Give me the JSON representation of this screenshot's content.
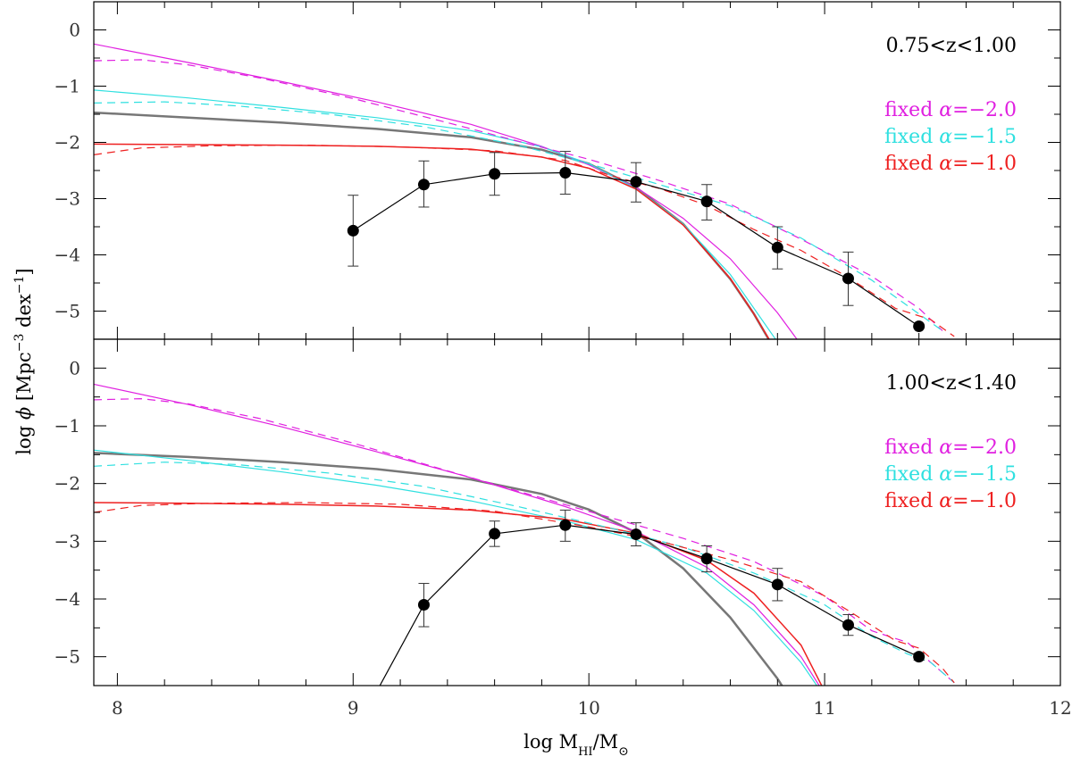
{
  "chart_data": {
    "type": "line",
    "xlabel": "log M",
    "xlabel_sub": "HI",
    "xlabel_tail": "/M",
    "xlabel_sun": "⊙",
    "ylabel_pre": "log ",
    "ylabel_phi": "ϕ",
    "ylabel_mid": " [Mpc",
    "ylabel_exp1": "−3",
    "ylabel_dex": " dex",
    "ylabel_exp2": "−1",
    "ylabel_end": "]",
    "xlim": [
      7.9,
      12.0
    ],
    "ylim": [
      -5.5,
      0.5
    ],
    "xticks": [
      "8",
      "9",
      "10",
      "11",
      "12"
    ],
    "yticks": [
      "0",
      "−1",
      "−2",
      "−3",
      "−4",
      "−5"
    ],
    "colors": {
      "gray": "#777777",
      "magenta": "#e020e0",
      "cyan": "#30e0e0",
      "red": "#ee2020",
      "black": "#000000"
    },
    "panels": [
      {
        "label": "0.75<z<1.00",
        "legend": [
          {
            "prefix": "fixed ",
            "alpha": "α",
            "value": "=−2.0",
            "color": "magenta"
          },
          {
            "prefix": "fixed ",
            "alpha": "α",
            "value": "=−1.5",
            "color": "cyan"
          },
          {
            "prefix": "fixed ",
            "alpha": "α",
            "value": "=−1.0",
            "color": "red"
          }
        ],
        "points": {
          "x": [
            9.0,
            9.3,
            9.6,
            9.9,
            10.2,
            10.5,
            10.8,
            11.1,
            11.4
          ],
          "y": [
            -3.57,
            -2.75,
            -2.56,
            -2.54,
            -2.7,
            -3.05,
            -3.87,
            -4.42,
            -5.27
          ],
          "err_lo": [
            0.63,
            0.4,
            0.38,
            0.38,
            0.36,
            0.33,
            0.38,
            0.48,
            0.0
          ],
          "err_hi": [
            0.63,
            0.42,
            0.38,
            0.38,
            0.34,
            0.3,
            0.37,
            0.47,
            0.0
          ]
        },
        "series": [
          {
            "name": "gray",
            "style": "solid",
            "width": 2.5,
            "x": [
              7.9,
              8.3,
              8.7,
              9.1,
              9.5,
              9.8,
              10.0,
              10.2,
              10.4,
              10.6,
              10.7,
              10.8
            ],
            "y": [
              -1.47,
              -1.56,
              -1.65,
              -1.76,
              -1.91,
              -2.13,
              -2.38,
              -2.8,
              -3.45,
              -4.43,
              -5.05,
              -5.77
            ]
          },
          {
            "name": "magenta",
            "style": "solid",
            "width": 1.2,
            "x": [
              7.9,
              8.3,
              8.7,
              9.1,
              9.5,
              9.8,
              10.0,
              10.2,
              10.4,
              10.6,
              10.8,
              10.9
            ],
            "y": [
              -0.25,
              -0.58,
              -0.92,
              -1.28,
              -1.68,
              -2.07,
              -2.4,
              -2.8,
              -3.35,
              -4.07,
              -5.03,
              -5.6
            ]
          },
          {
            "name": "cyan",
            "style": "solid",
            "width": 1.2,
            "x": [
              7.9,
              8.3,
              8.7,
              9.1,
              9.5,
              9.8,
              10.0,
              10.2,
              10.4,
              10.6,
              10.8,
              10.85
            ],
            "y": [
              -1.07,
              -1.21,
              -1.38,
              -1.56,
              -1.79,
              -2.08,
              -2.38,
              -2.82,
              -3.45,
              -4.35,
              -5.55,
              -5.9
            ]
          },
          {
            "name": "red",
            "style": "solid",
            "width": 1.5,
            "x": [
              7.9,
              8.3,
              8.7,
              9.1,
              9.5,
              9.8,
              10.0,
              10.2,
              10.4,
              10.6,
              10.7,
              10.8
            ],
            "y": [
              -2.03,
              -2.04,
              -2.05,
              -2.07,
              -2.12,
              -2.26,
              -2.46,
              -2.83,
              -3.47,
              -4.42,
              -5.05,
              -5.75
            ]
          },
          {
            "name": "magenta",
            "style": "dash",
            "width": 1.2,
            "x": [
              7.9,
              8.1,
              8.3,
              8.6,
              9.0,
              9.4,
              9.7,
              10.0,
              10.3,
              10.6,
              10.9,
              11.2,
              11.4,
              11.5
            ],
            "y": [
              -0.55,
              -0.53,
              -0.62,
              -0.85,
              -1.22,
              -1.65,
              -1.98,
              -2.3,
              -2.68,
              -3.1,
              -3.72,
              -4.38,
              -4.95,
              -5.35
            ]
          },
          {
            "name": "cyan",
            "style": "dash",
            "width": 1.2,
            "x": [
              7.9,
              8.2,
              8.5,
              8.9,
              9.3,
              9.7,
              10.0,
              10.3,
              10.6,
              10.9,
              11.2,
              11.4,
              11.5
            ],
            "y": [
              -1.3,
              -1.28,
              -1.35,
              -1.5,
              -1.72,
              -2.05,
              -2.38,
              -2.75,
              -3.13,
              -3.7,
              -4.45,
              -5.05,
              -5.35
            ]
          },
          {
            "name": "red",
            "style": "dash",
            "width": 1.2,
            "x": [
              7.9,
              8.1,
              8.4,
              8.8,
              9.2,
              9.6,
              9.9,
              10.1,
              10.3,
              10.5,
              10.7,
              10.9,
              11.1,
              11.3,
              11.45,
              11.55
            ],
            "y": [
              -2.22,
              -2.1,
              -2.06,
              -2.05,
              -2.08,
              -2.15,
              -2.32,
              -2.6,
              -2.82,
              -3.12,
              -3.55,
              -3.92,
              -4.4,
              -4.95,
              -5.15,
              -5.45
            ]
          }
        ]
      },
      {
        "label": "1.00<z<1.40",
        "legend": [
          {
            "prefix": "fixed ",
            "alpha": "α",
            "value": "=−2.0",
            "color": "magenta"
          },
          {
            "prefix": "fixed ",
            "alpha": "α",
            "value": "=−1.5",
            "color": "cyan"
          },
          {
            "prefix": "fixed ",
            "alpha": "α",
            "value": "=−1.0",
            "color": "red"
          }
        ],
        "points": {
          "x": [
            9.3,
            9.6,
            9.9,
            10.2,
            10.5,
            10.8,
            11.1,
            11.4
          ],
          "y": [
            -4.1,
            -2.87,
            -2.72,
            -2.88,
            -3.3,
            -3.75,
            -4.45,
            -5.0
          ],
          "err_lo": [
            0.38,
            0.22,
            0.28,
            0.2,
            0.23,
            0.28,
            0.18,
            0.06
          ],
          "err_hi": [
            0.37,
            0.22,
            0.26,
            0.2,
            0.22,
            0.28,
            0.18,
            0.06
          ]
        },
        "black_line": {
          "x": [
            9.1,
            9.3,
            9.6,
            9.9,
            10.2,
            10.5,
            10.8,
            11.1,
            11.4
          ],
          "y": [
            -5.6,
            -4.1,
            -2.87,
            -2.72,
            -2.88,
            -3.3,
            -3.75,
            -4.45,
            -5.0
          ]
        },
        "series": [
          {
            "name": "gray",
            "style": "solid",
            "width": 2.5,
            "x": [
              7.9,
              8.3,
              8.7,
              9.1,
              9.5,
              9.8,
              10.0,
              10.2,
              10.4,
              10.6,
              10.8,
              10.85
            ],
            "y": [
              -1.47,
              -1.54,
              -1.63,
              -1.75,
              -1.93,
              -2.18,
              -2.45,
              -2.85,
              -3.47,
              -4.32,
              -5.38,
              -5.7
            ]
          },
          {
            "name": "magenta",
            "style": "solid",
            "width": 1.2,
            "x": [
              7.9,
              8.3,
              8.7,
              9.1,
              9.5,
              9.9,
              10.2,
              10.5,
              10.7,
              10.9,
              11.0
            ],
            "y": [
              -0.28,
              -0.63,
              -1.02,
              -1.45,
              -1.9,
              -2.4,
              -2.83,
              -3.45,
              -4.1,
              -5.0,
              -5.65
            ]
          },
          {
            "name": "cyan",
            "style": "solid",
            "width": 1.2,
            "x": [
              7.9,
              8.3,
              8.7,
              9.1,
              9.5,
              9.9,
              10.2,
              10.5,
              10.7,
              10.9,
              11.0
            ],
            "y": [
              -1.42,
              -1.6,
              -1.8,
              -2.03,
              -2.3,
              -2.65,
              -2.97,
              -3.55,
              -4.2,
              -5.1,
              -5.7
            ]
          },
          {
            "name": "red",
            "style": "solid",
            "width": 1.5,
            "x": [
              7.9,
              8.3,
              8.7,
              9.1,
              9.5,
              9.9,
              10.2,
              10.5,
              10.7,
              10.9,
              11.0
            ],
            "y": [
              -2.33,
              -2.34,
              -2.36,
              -2.39,
              -2.46,
              -2.62,
              -2.86,
              -3.33,
              -3.9,
              -4.8,
              -5.6
            ]
          },
          {
            "name": "magenta",
            "style": "dash",
            "width": 1.2,
            "x": [
              7.9,
              8.1,
              8.3,
              8.6,
              9.0,
              9.4,
              9.8,
              10.1,
              10.4,
              10.7,
              11.0,
              11.2,
              11.35,
              11.45,
              11.55
            ],
            "y": [
              -0.55,
              -0.53,
              -0.62,
              -0.87,
              -1.3,
              -1.78,
              -2.25,
              -2.6,
              -2.95,
              -3.35,
              -3.95,
              -4.55,
              -4.75,
              -5.1,
              -5.45
            ]
          },
          {
            "name": "cyan",
            "style": "dash",
            "width": 1.2,
            "x": [
              7.9,
              8.2,
              8.5,
              8.9,
              9.3,
              9.7,
              10.1,
              10.4,
              10.7,
              11.0,
              11.2,
              11.35,
              11.45,
              11.55
            ],
            "y": [
              -1.7,
              -1.63,
              -1.67,
              -1.82,
              -2.05,
              -2.4,
              -2.78,
              -3.1,
              -3.55,
              -4.1,
              -4.65,
              -4.95,
              -5.1,
              -5.45
            ]
          },
          {
            "name": "red",
            "style": "dash",
            "width": 1.2,
            "x": [
              7.9,
              8.1,
              8.4,
              8.8,
              9.2,
              9.6,
              10.0,
              10.3,
              10.6,
              10.9,
              11.1,
              11.3,
              11.4,
              11.5,
              11.55
            ],
            "y": [
              -2.5,
              -2.38,
              -2.34,
              -2.33,
              -2.36,
              -2.48,
              -2.75,
              -3.0,
              -3.32,
              -3.7,
              -4.2,
              -4.72,
              -4.85,
              -5.2,
              -5.45
            ]
          }
        ]
      }
    ]
  }
}
